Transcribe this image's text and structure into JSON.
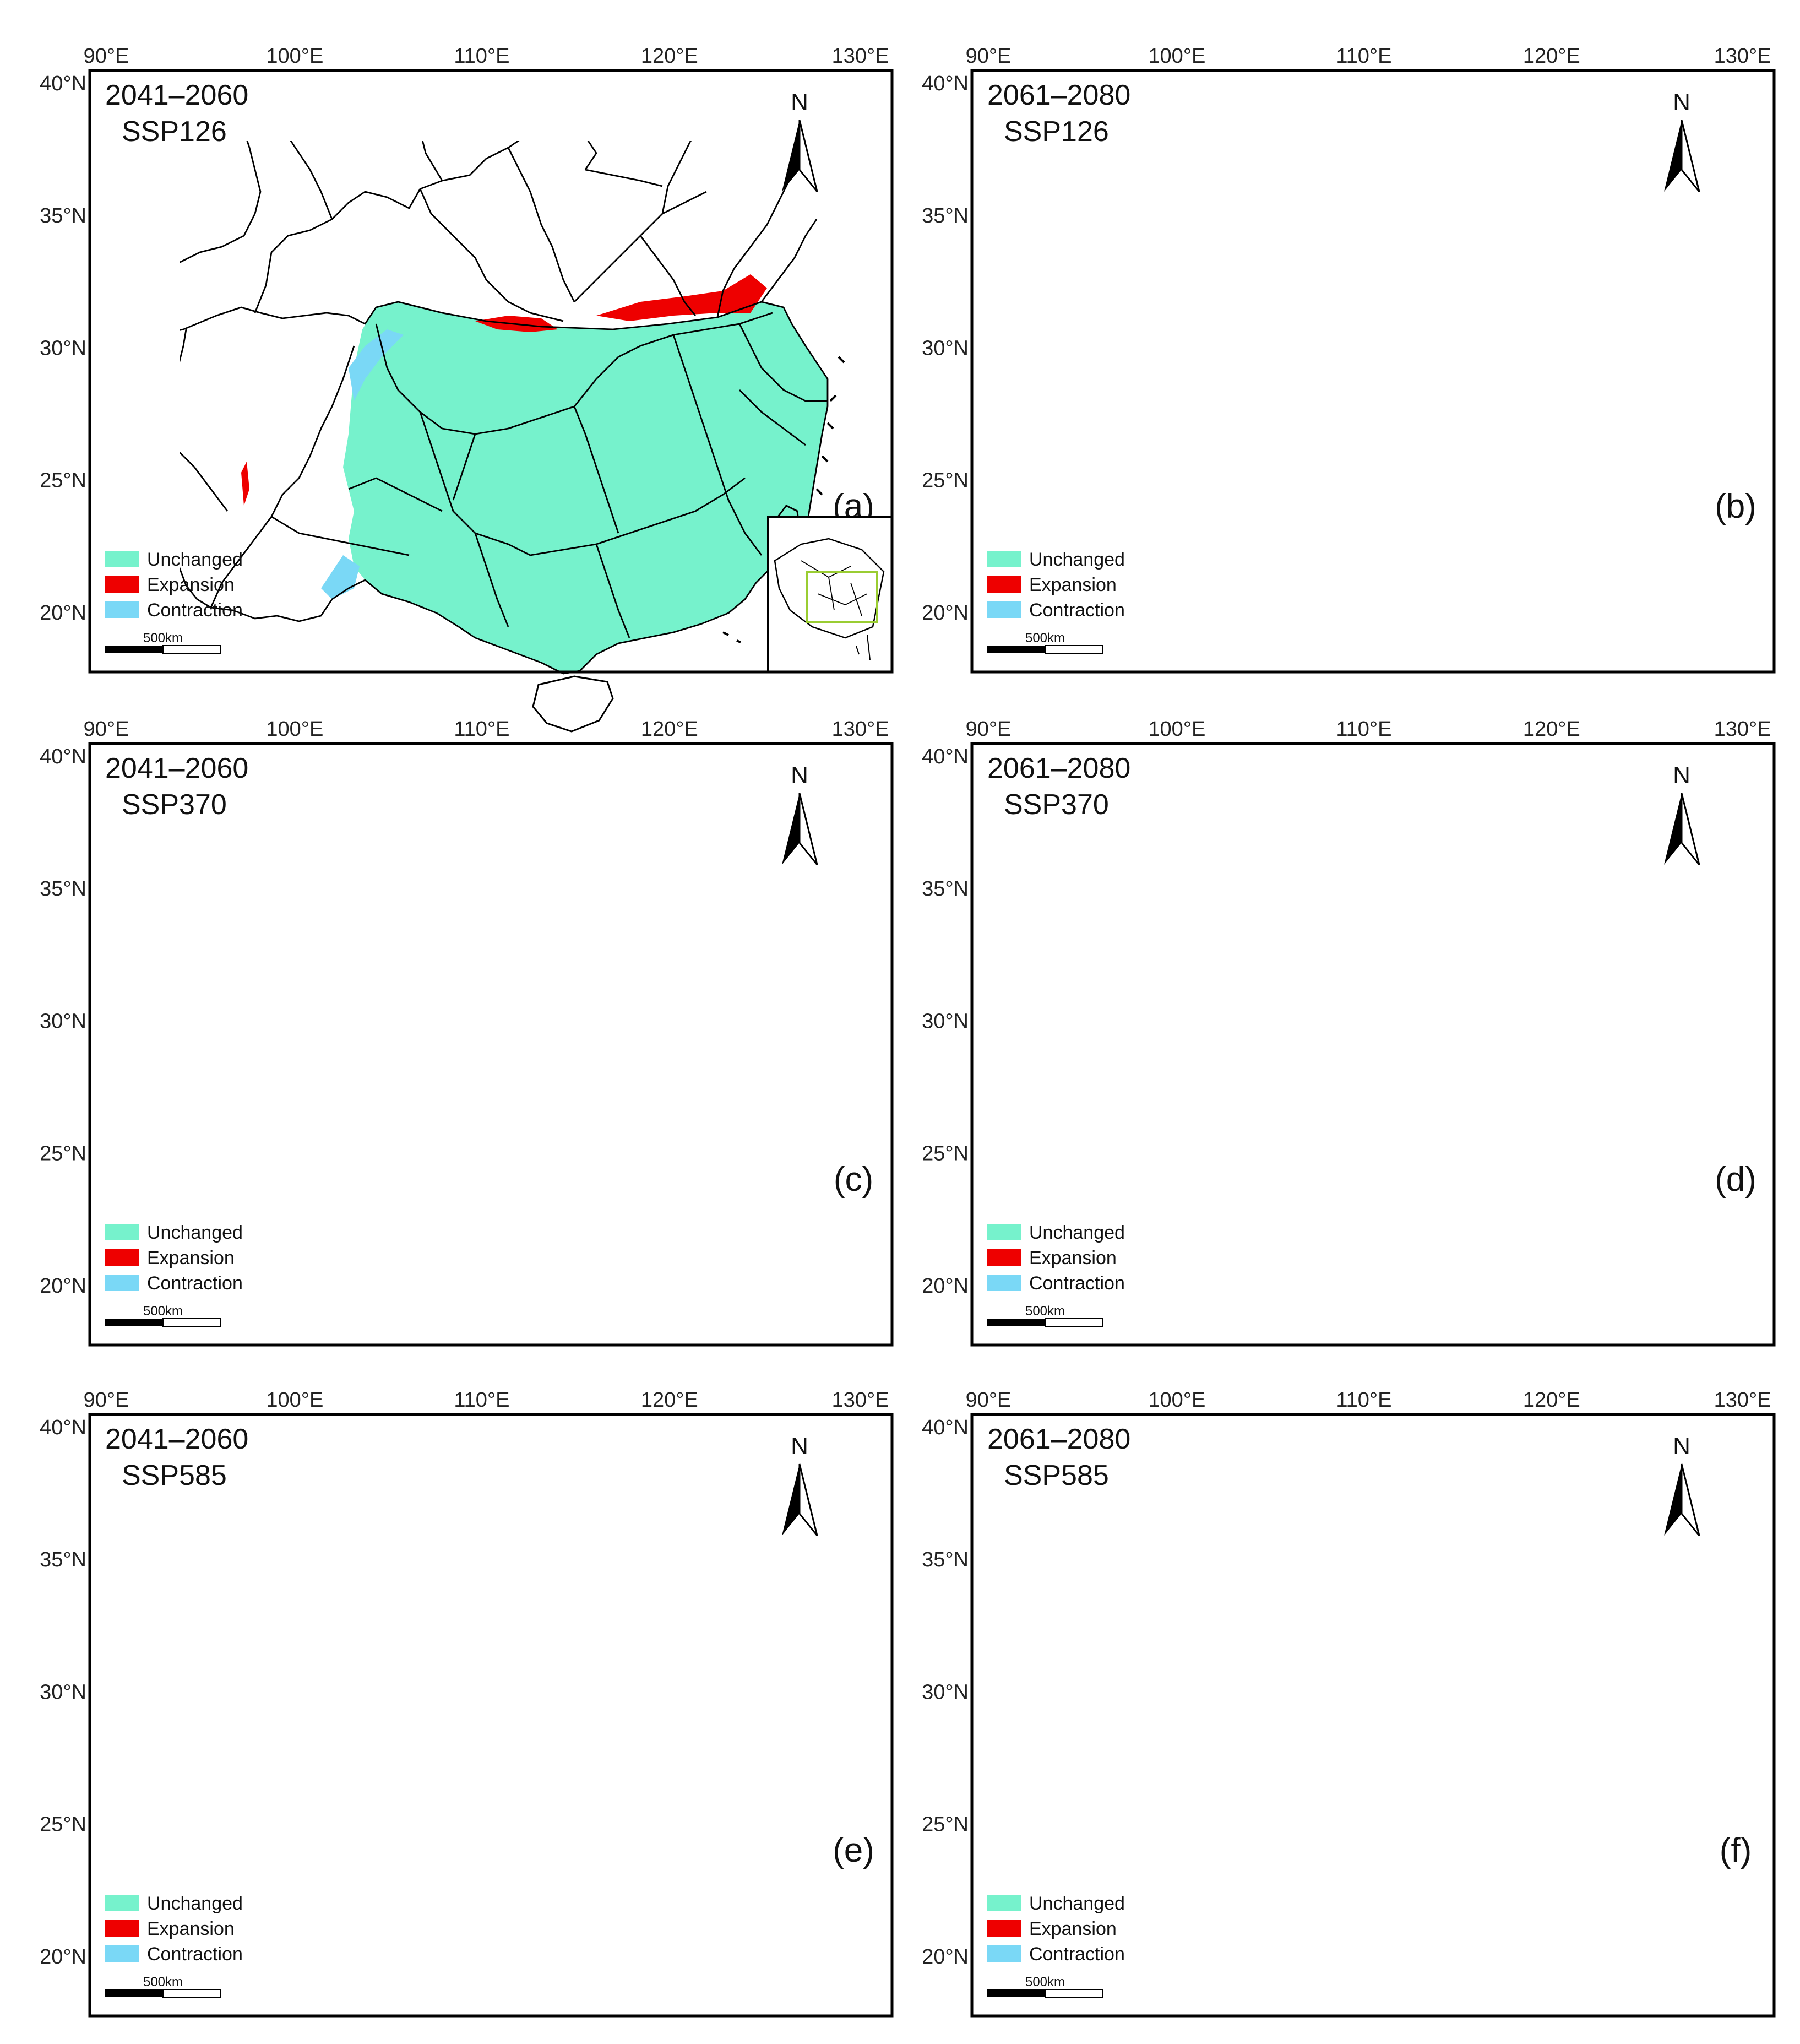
{
  "colors": {
    "unchanged": "#76F2CC",
    "expansion": "#EE0000",
    "contraction": "#7AD8F6",
    "frame": "#000000"
  },
  "axes": {
    "lon_ticks": [
      "90°E",
      "100°E",
      "110°E",
      "120°E",
      "130°E"
    ],
    "lat_ticks": [
      "40°N",
      "35°N",
      "30°N",
      "25°N",
      "20°N"
    ]
  },
  "legend": {
    "unchanged": "Unchanged",
    "expansion": "Expansion",
    "contraction": "Contraction"
  },
  "scale_bar": "500km",
  "north_label": "N",
  "panels": [
    {
      "id": "a",
      "period": "2041–2060",
      "scenario": "SSP126",
      "label": "(a)",
      "has_inset": true
    },
    {
      "id": "b",
      "period": "2061–2080",
      "scenario": "SSP126",
      "label": "(b)",
      "has_inset": false
    },
    {
      "id": "c",
      "period": "2041–2060",
      "scenario": "SSP370",
      "label": "(c)",
      "has_inset": false
    },
    {
      "id": "d",
      "period": "2061–2080",
      "scenario": "SSP370",
      "label": "(d)",
      "has_inset": false
    },
    {
      "id": "e",
      "period": "2041–2060",
      "scenario": "SSP585",
      "label": "(e)",
      "has_inset": false
    },
    {
      "id": "f",
      "period": "2061–2080",
      "scenario": "SSP585",
      "label": "(f)",
      "has_inset": false
    }
  ]
}
